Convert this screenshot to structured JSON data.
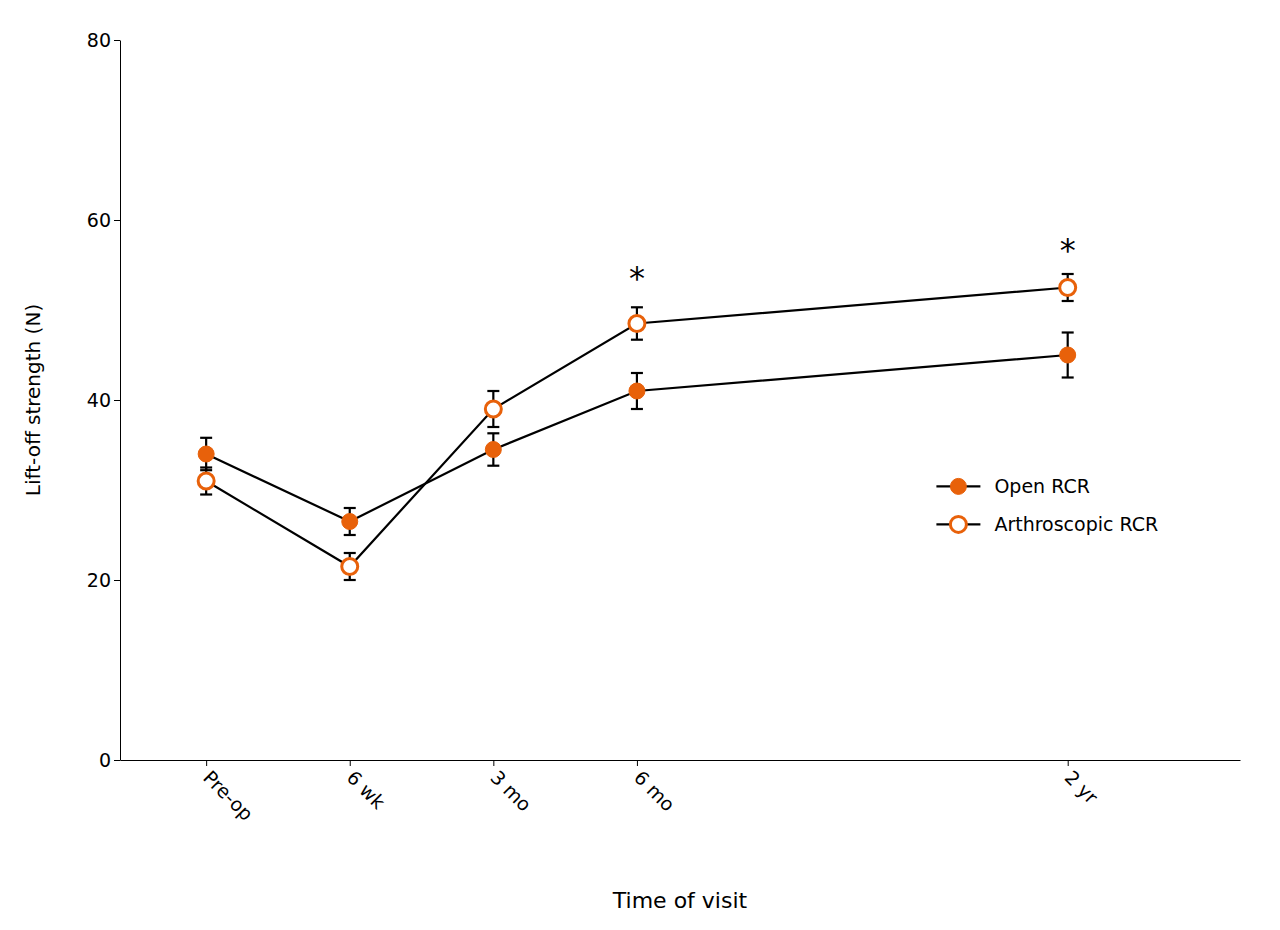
{
  "chart_data": {
    "type": "line",
    "x": [
      0,
      1,
      2,
      3,
      6
    ],
    "xlim": [
      -0.6,
      7.2
    ],
    "xticks": [
      {
        "value": 0,
        "label": "Pre-op"
      },
      {
        "value": 1,
        "label": "6 wk"
      },
      {
        "value": 2,
        "label": "3 mo"
      },
      {
        "value": 3,
        "label": "6 mo"
      },
      {
        "value": 6,
        "label": "2 yr"
      }
    ],
    "ylim": [
      0,
      80
    ],
    "yticks": [
      0,
      20,
      40,
      60,
      80
    ],
    "xlabel": "Time of visit",
    "ylabel": "Lift-off strength (N)",
    "color": "#000000",
    "grid": false,
    "legend": "lower right",
    "series": [
      {
        "name": "Open RCR",
        "color": "#E8610A",
        "marker": "circle",
        "values": [
          34.0,
          26.5,
          34.5,
          41.0,
          45.0
        ],
        "errors": [
          1.8,
          1.5,
          1.8,
          2.0,
          2.5
        ]
      },
      {
        "name": "Arthroscopic RCR",
        "color": "#E8610A",
        "marker": "open-circle",
        "values": [
          31.0,
          21.5,
          39.0,
          48.5,
          52.5
        ],
        "errors": [
          1.5,
          1.5,
          2.0,
          1.8,
          1.5
        ]
      }
    ],
    "annotations": [
      {
        "text": "*",
        "x": 3,
        "y": 52.3
      },
      {
        "text": "*",
        "x": 6,
        "y": 55.5
      }
    ]
  }
}
